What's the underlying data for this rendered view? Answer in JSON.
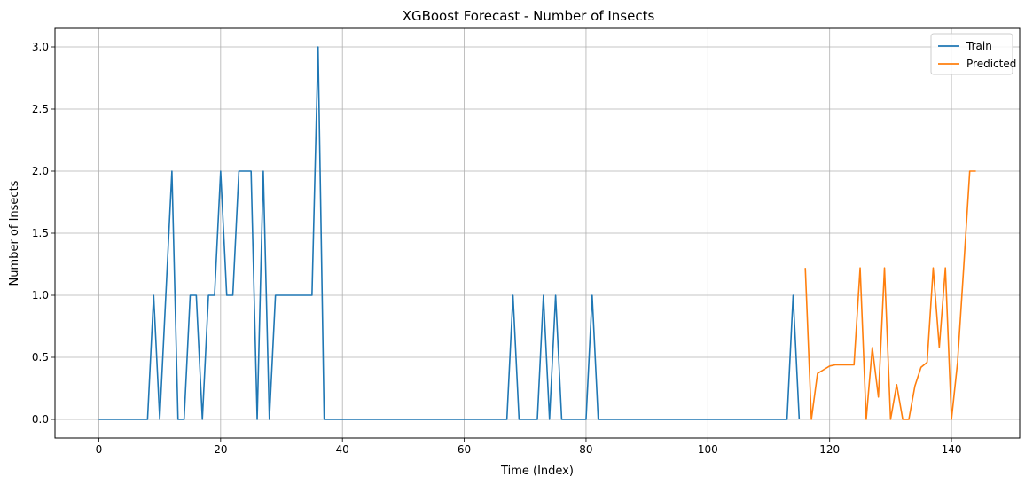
{
  "chart_data": {
    "type": "line",
    "title": "XGBoost Forecast - Number of Insects",
    "xlabel": "Time (Index)",
    "ylabel": "Number of Insects",
    "xlim": [
      -7.2,
      151.2
    ],
    "ylim": [
      -0.15,
      3.15
    ],
    "xticks": [
      0,
      20,
      40,
      60,
      80,
      100,
      120,
      140
    ],
    "yticks": [
      0.0,
      0.5,
      1.0,
      1.5,
      2.0,
      2.5,
      3.0
    ],
    "ytick_labels": [
      "0.0",
      "0.5",
      "1.0",
      "1.5",
      "2.0",
      "2.5",
      "3.0"
    ],
    "grid": true,
    "legend_position": "top-right",
    "series": [
      {
        "name": "Train",
        "color": "#1f77b4",
        "x": [
          0,
          1,
          2,
          3,
          4,
          5,
          6,
          7,
          8,
          9,
          10,
          11,
          12,
          13,
          14,
          15,
          16,
          17,
          18,
          19,
          20,
          21,
          22,
          23,
          24,
          25,
          26,
          27,
          28,
          29,
          30,
          31,
          32,
          33,
          34,
          35,
          36,
          37,
          38,
          39,
          40,
          41,
          42,
          43,
          44,
          45,
          46,
          47,
          48,
          49,
          50,
          51,
          52,
          53,
          54,
          55,
          56,
          57,
          58,
          59,
          60,
          61,
          62,
          63,
          64,
          65,
          66,
          67,
          68,
          69,
          70,
          71,
          72,
          73,
          74,
          75,
          76,
          77,
          78,
          79,
          80,
          81,
          82,
          83,
          84,
          85,
          86,
          87,
          88,
          89,
          90,
          91,
          92,
          93,
          94,
          95,
          96,
          97,
          98,
          99,
          100,
          101,
          102,
          103,
          104,
          105,
          106,
          107,
          108,
          109,
          110,
          111,
          112,
          113,
          114,
          115
        ],
        "values": [
          0,
          0,
          0,
          0,
          0,
          0,
          0,
          0,
          0,
          1,
          0,
          1,
          2,
          0,
          0,
          1,
          1,
          0,
          1,
          1,
          2,
          1,
          1,
          2,
          2,
          2,
          0,
          2,
          0,
          1,
          1,
          1,
          1,
          1,
          1,
          1,
          3,
          0,
          0,
          0,
          0,
          0,
          0,
          0,
          0,
          0,
          0,
          0,
          0,
          0,
          0,
          0,
          0,
          0,
          0,
          0,
          0,
          0,
          0,
          0,
          0,
          0,
          0,
          0,
          0,
          0,
          0,
          0,
          1,
          0,
          0,
          0,
          0,
          1,
          0,
          1,
          0,
          0,
          0,
          0,
          0,
          1,
          0,
          0,
          0,
          0,
          0,
          0,
          0,
          0,
          0,
          0,
          0,
          0,
          0,
          0,
          0,
          0,
          0,
          0,
          0,
          0,
          0,
          0,
          0,
          0,
          0,
          0,
          0,
          0,
          0,
          0,
          0,
          0,
          1,
          0
        ]
      },
      {
        "name": "Predicted",
        "color": "#ff7f0e",
        "x": [
          116,
          117,
          118,
          119,
          120,
          121,
          122,
          123,
          124,
          125,
          126,
          127,
          128,
          129,
          130,
          131,
          132,
          133,
          134,
          135,
          136,
          137,
          138,
          139,
          140,
          141,
          142,
          143,
          144
        ],
        "values": [
          1.22,
          0.0,
          0.37,
          0.4,
          0.43,
          0.44,
          0.44,
          0.44,
          0.44,
          1.22,
          0.0,
          0.58,
          0.18,
          1.22,
          0.0,
          0.28,
          0.0,
          0.0,
          0.27,
          0.42,
          0.46,
          1.22,
          0.58,
          1.22,
          0.0,
          0.46,
          1.22,
          2.0,
          2.0
        ]
      }
    ]
  }
}
